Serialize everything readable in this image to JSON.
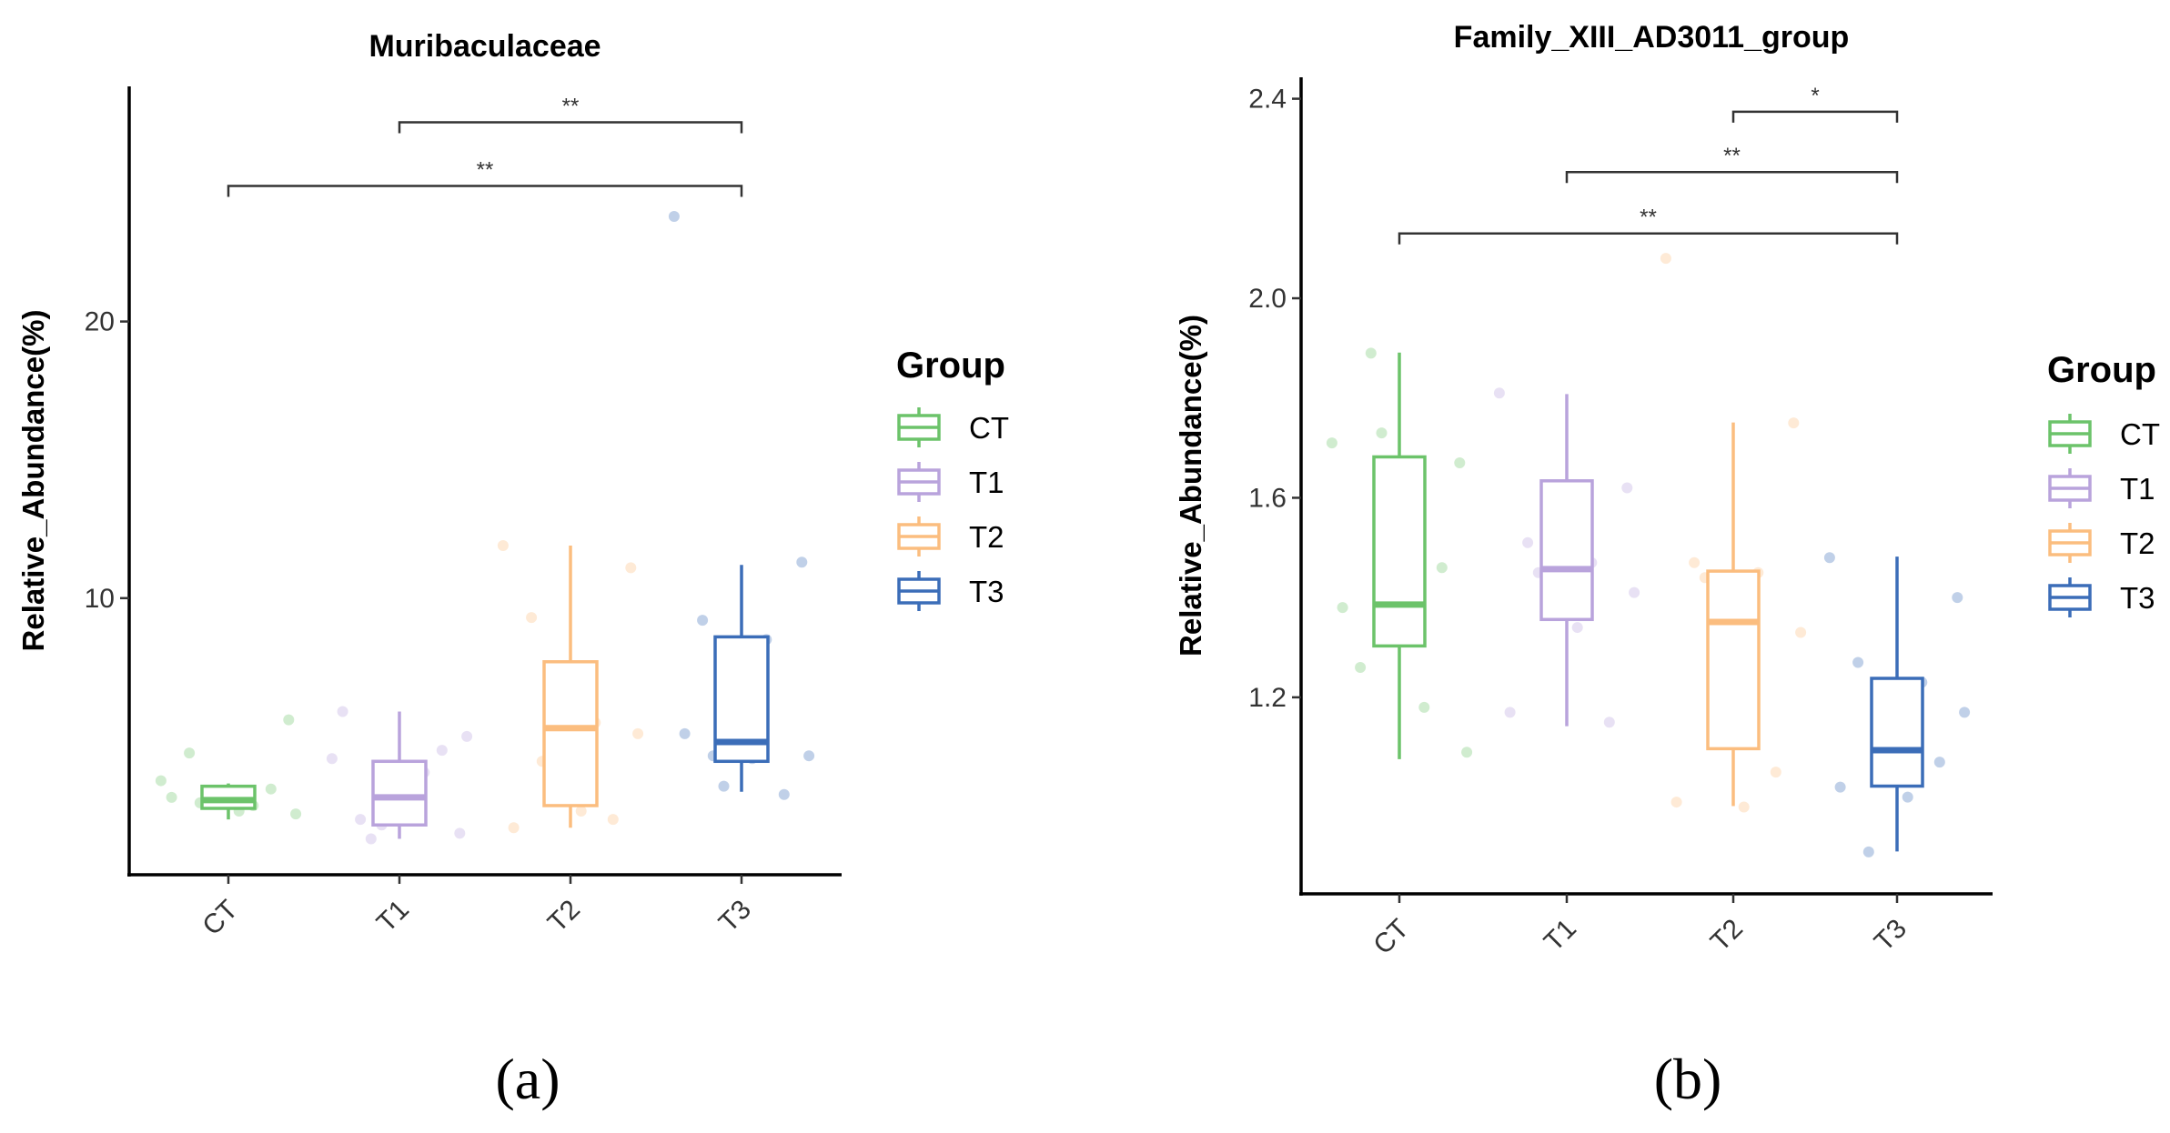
{
  "chart_data": [
    {
      "type": "boxplot",
      "panel_label": "(a)",
      "title": "Muribaculaceae",
      "xlabel": "",
      "ylabel": "Relative_Abundance(%)",
      "ylim": [
        0,
        28.5
      ],
      "yticks": [
        10,
        20
      ],
      "categories": [
        "CT",
        "T1",
        "T2",
        "T3"
      ],
      "colors": [
        "#6cc36a",
        "#b9a3dc",
        "#fbbd7f",
        "#3b6db8"
      ],
      "legend": {
        "title": "Group",
        "entries": [
          "CT",
          "T1",
          "T2",
          "T3"
        ],
        "position": "right"
      },
      "boxes": [
        {
          "group": "CT",
          "whisker_low": 2.0,
          "q1": 2.4,
          "median": 2.7,
          "q3": 3.2,
          "whisker_high": 3.3
        },
        {
          "group": "T1",
          "whisker_low": 1.3,
          "q1": 1.8,
          "median": 2.8,
          "q3": 4.1,
          "whisker_high": 5.9
        },
        {
          "group": "T2",
          "whisker_low": 1.7,
          "q1": 2.5,
          "median": 5.3,
          "q3": 7.7,
          "whisker_high": 11.9
        },
        {
          "group": "T3",
          "whisker_low": 3.0,
          "q1": 4.1,
          "median": 4.8,
          "q3": 8.6,
          "whisker_high": 11.2
        }
      ],
      "points": [
        {
          "group": "CT",
          "values": [
            3.4,
            5.6,
            4.4,
            2.5,
            2.2,
            2.9,
            3.1,
            2.8,
            2.3,
            2.6
          ]
        },
        {
          "group": "T1",
          "values": [
            4.2,
            1.5,
            2.0,
            3.7,
            5.0,
            1.8,
            4.5,
            5.9,
            2.2,
            1.3
          ]
        },
        {
          "group": "T2",
          "values": [
            11.9,
            11.1,
            9.3,
            5.5,
            5.1,
            6.9,
            2.0,
            1.7,
            2.3,
            4.1
          ]
        },
        {
          "group": "T3",
          "values": [
            23.8,
            11.3,
            9.2,
            8.5,
            4.3,
            3.2,
            2.9,
            5.1,
            4.2,
            4.3
          ]
        }
      ],
      "comparisons": [
        {
          "from": "T1",
          "to": "T3",
          "y": 27.2,
          "label": "**"
        },
        {
          "from": "CT",
          "to": "T3",
          "y": 24.9,
          "label": "**"
        }
      ]
    },
    {
      "type": "boxplot",
      "panel_label": "(b)",
      "title": "Family_XIII_AD3011_group",
      "xlabel": "",
      "ylabel": "Relative_Abundance(%)",
      "ylim": [
        0.806,
        2.443
      ],
      "yticks": [
        1.2,
        1.6,
        2.0,
        2.4
      ],
      "categories": [
        "CT",
        "T1",
        "T2",
        "T3"
      ],
      "colors": [
        "#6cc36a",
        "#b9a3dc",
        "#fbbd7f",
        "#3b6db8"
      ],
      "legend": {
        "title": "Group",
        "entries": [
          "CT",
          "T1",
          "T2",
          "T3"
        ],
        "position": "right"
      },
      "boxes": [
        {
          "group": "CT",
          "whisker_low": 1.076,
          "q1": 1.303,
          "median": 1.386,
          "q3": 1.682,
          "whisker_high": 1.891
        },
        {
          "group": "T1",
          "whisker_low": 1.142,
          "q1": 1.356,
          "median": 1.457,
          "q3": 1.634,
          "whisker_high": 1.808
        },
        {
          "group": "T2",
          "whisker_low": 0.982,
          "q1": 1.097,
          "median": 1.351,
          "q3": 1.453,
          "whisker_high": 1.751
        },
        {
          "group": "T3",
          "whisker_low": 0.891,
          "q1": 1.022,
          "median": 1.094,
          "q3": 1.238,
          "whisker_high": 1.482
        }
      ],
      "points": [
        {
          "group": "CT",
          "values": [
            1.71,
            1.67,
            1.26,
            1.18,
            1.09,
            1.73,
            1.46,
            1.38,
            1.32,
            1.89
          ]
        },
        {
          "group": "T1",
          "values": [
            1.81,
            1.62,
            1.51,
            1.47,
            1.41,
            1.37,
            1.15,
            1.17,
            1.34,
            1.45
          ]
        },
        {
          "group": "T2",
          "values": [
            2.08,
            1.75,
            1.47,
            1.45,
            1.33,
            1.2,
            1.05,
            0.99,
            0.98,
            1.44
          ]
        },
        {
          "group": "T3",
          "values": [
            1.48,
            1.4,
            1.27,
            1.23,
            1.17,
            1.13,
            1.07,
            1.02,
            1.0,
            0.89
          ]
        }
      ],
      "comparisons": [
        {
          "from": "T2",
          "to": "T3",
          "y": 2.374,
          "label": "*"
        },
        {
          "from": "T1",
          "to": "T3",
          "y": 2.253,
          "label": "**"
        },
        {
          "from": "CT",
          "to": "T3",
          "y": 2.13,
          "label": "**"
        }
      ]
    }
  ]
}
